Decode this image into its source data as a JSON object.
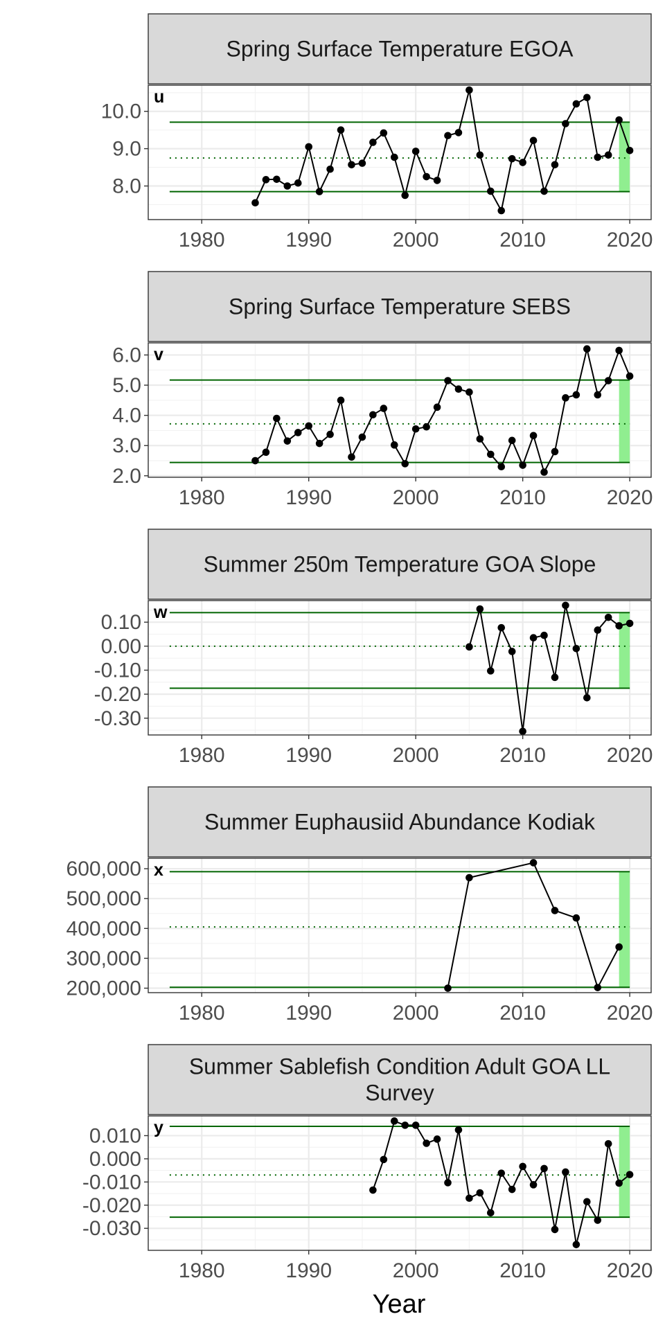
{
  "xlabel": "Year",
  "colors": {
    "series": "#000000",
    "bounds": "#006400",
    "mean": "#006400",
    "highlight": "#90ee90"
  },
  "chart_data": [
    {
      "type": "line",
      "title": "Spring Surface Temperature EGOA",
      "tag": "u",
      "xlim": [
        1975,
        2022
      ],
      "x_ticks": [
        1980,
        1990,
        2000,
        2010,
        2020
      ],
      "y_ticks": [
        8.0,
        9.0,
        10.0
      ],
      "y_tick_labels": [
        "8.0",
        "9.0",
        "10.0"
      ],
      "ylim": [
        7.1,
        10.7
      ],
      "mean": 8.75,
      "upper": 9.71,
      "lower": 7.85,
      "highlight_x": [
        2019,
        2020
      ],
      "x": [
        1985,
        1986,
        1987,
        1988,
        1989,
        1990,
        1991,
        1992,
        1993,
        1994,
        1995,
        1996,
        1997,
        1998,
        1999,
        2000,
        2001,
        2002,
        2003,
        2004,
        2005,
        2006,
        2007,
        2008,
        2009,
        2010,
        2011,
        2012,
        2013,
        2014,
        2015,
        2016,
        2017,
        2018,
        2019,
        2020
      ],
      "y": [
        7.55,
        8.17,
        8.18,
        8.0,
        8.08,
        9.05,
        7.85,
        8.45,
        9.5,
        8.57,
        8.61,
        9.17,
        9.42,
        8.77,
        7.75,
        8.93,
        8.25,
        8.15,
        9.35,
        9.43,
        10.57,
        8.83,
        7.86,
        7.34,
        8.73,
        8.63,
        9.22,
        7.86,
        8.57,
        9.67,
        10.2,
        10.37,
        8.77,
        8.83,
        9.77,
        8.95
      ]
    },
    {
      "type": "line",
      "title": "Spring Surface Temperature SEBS",
      "tag": "v",
      "xlim": [
        1975,
        2022
      ],
      "x_ticks": [
        1980,
        1990,
        2000,
        2010,
        2020
      ],
      "y_ticks": [
        2.0,
        3.0,
        4.0,
        5.0,
        6.0
      ],
      "y_tick_labels": [
        "2.0",
        "3.0",
        "4.0",
        "5.0",
        "6.0"
      ],
      "ylim": [
        1.95,
        6.4
      ],
      "mean": 3.72,
      "upper": 5.17,
      "lower": 2.44,
      "highlight_x": [
        2019,
        2020
      ],
      "x": [
        1985,
        1986,
        1987,
        1988,
        1989,
        1990,
        1991,
        1992,
        1993,
        1994,
        1995,
        1996,
        1997,
        1998,
        1999,
        2000,
        2001,
        2002,
        2003,
        2004,
        2005,
        2006,
        2007,
        2008,
        2009,
        2010,
        2011,
        2012,
        2013,
        2014,
        2015,
        2016,
        2017,
        2018,
        2019,
        2020
      ],
      "y": [
        2.5,
        2.78,
        3.9,
        3.15,
        3.43,
        3.65,
        3.07,
        3.37,
        4.5,
        2.62,
        3.28,
        4.02,
        4.23,
        3.02,
        2.4,
        3.55,
        3.62,
        4.27,
        5.15,
        4.87,
        4.77,
        3.22,
        2.71,
        2.3,
        3.17,
        2.35,
        3.33,
        2.12,
        2.8,
        4.58,
        4.68,
        6.2,
        4.68,
        5.15,
        6.15,
        5.3
      ]
    },
    {
      "type": "line",
      "title": "Summer 250m Temperature GOA Slope",
      "tag": "w",
      "xlim": [
        1975,
        2022
      ],
      "x_ticks": [
        1980,
        1990,
        2000,
        2010,
        2020
      ],
      "y_ticks": [
        -0.3,
        -0.2,
        -0.1,
        0.0,
        0.1
      ],
      "y_tick_labels": [
        "-0.30",
        "-0.20",
        "-0.10",
        "0.00",
        "0.10"
      ],
      "ylim": [
        -0.37,
        0.19
      ],
      "mean": 0.0,
      "upper": 0.14,
      "lower": -0.175,
      "highlight_x": [
        2019,
        2020
      ],
      "x": [
        2005,
        2006,
        2007,
        2008,
        2009,
        2010,
        2011,
        2012,
        2013,
        2014,
        2015,
        2016,
        2017,
        2018,
        2019,
        2020
      ],
      "y": [
        -0.003,
        0.155,
        -0.103,
        0.077,
        -0.022,
        -0.355,
        0.035,
        0.045,
        -0.13,
        0.17,
        -0.01,
        -0.215,
        0.067,
        0.12,
        0.085,
        0.095
      ]
    },
    {
      "type": "line",
      "title": "Summer Euphausiid Abundance Kodiak",
      "tag": "x",
      "xlim": [
        1975,
        2022
      ],
      "x_ticks": [
        1980,
        1990,
        2000,
        2010,
        2020
      ],
      "y_ticks": [
        200000,
        300000,
        400000,
        500000,
        600000
      ],
      "y_tick_labels": [
        "200,000",
        "300,000",
        "400,000",
        "500,000",
        "600,000"
      ],
      "ylim": [
        185000,
        635000
      ],
      "mean": 405000,
      "upper": 590000,
      "lower": 203000,
      "highlight_x": [
        2019,
        2020
      ],
      "x": [
        2003,
        2005,
        2011,
        2013,
        2015,
        2017,
        2019
      ],
      "y": [
        200000,
        570000,
        620000,
        460000,
        435000,
        202000,
        338000
      ]
    },
    {
      "type": "line",
      "title": "Summer Sablefish Condition Adult GOA LL Survey",
      "title_lines": [
        "Summer Sablefish Condition Adult GOA LL",
        "Survey"
      ],
      "tag": "y",
      "xlim": [
        1975,
        2022
      ],
      "x_ticks": [
        1980,
        1990,
        2000,
        2010,
        2020
      ],
      "y_ticks": [
        -0.03,
        -0.02,
        -0.01,
        0.0,
        0.01
      ],
      "y_tick_labels": [
        "-0.030",
        "-0.020",
        "-0.010",
        "0.000",
        "0.010"
      ],
      "ylim": [
        -0.0395,
        0.0185
      ],
      "mean": -0.007,
      "upper": 0.014,
      "lower": -0.0252,
      "highlight_x": [
        2019,
        2020
      ],
      "x": [
        1996,
        1997,
        1998,
        1999,
        2000,
        2001,
        2002,
        2003,
        2004,
        2005,
        2006,
        2007,
        2008,
        2009,
        2010,
        2011,
        2012,
        2013,
        2014,
        2015,
        2016,
        2017,
        2018,
        2019,
        2020
      ],
      "y": [
        -0.0135,
        -0.0003,
        0.0163,
        0.0145,
        0.0145,
        0.0067,
        0.0085,
        -0.0103,
        0.0125,
        -0.017,
        -0.0147,
        -0.0233,
        -0.0062,
        -0.0132,
        -0.0033,
        -0.0112,
        -0.0042,
        -0.0305,
        -0.0057,
        -0.037,
        -0.0185,
        -0.0265,
        0.0065,
        -0.0105,
        -0.0068
      ]
    }
  ]
}
